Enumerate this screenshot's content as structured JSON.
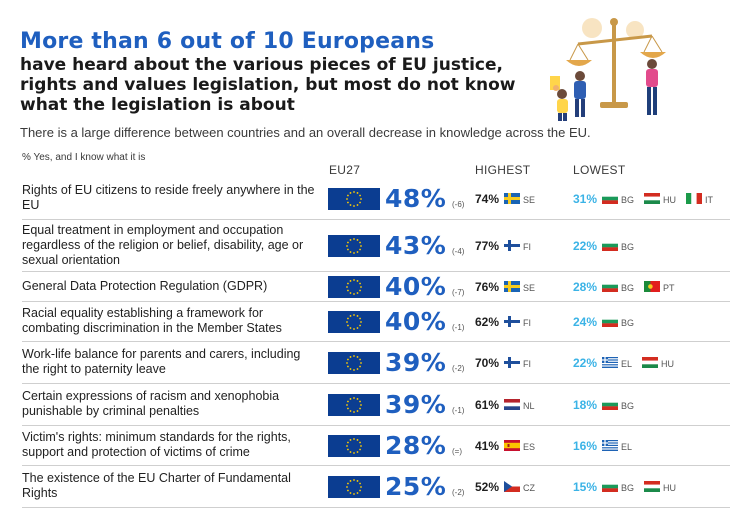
{
  "header": {
    "title": "More than 6 out of 10 Europeans",
    "subtitle": "have heard about the various pieces of EU justice, rights and values legislation, but most do not know what the legislation is about",
    "intro": "There is a large difference between countries and an overall decrease in knowledge across the EU.",
    "unit": "% Yes, and I know what it is"
  },
  "columns": {
    "eu": "EU27",
    "highest": "HIGHEST",
    "lowest": "LOWEST"
  },
  "rows": [
    {
      "label": "Rights of EU citizens to reside freely anywhere in the EU",
      "eu": "48%",
      "change": "(-6)",
      "highest": {
        "value": "74%",
        "countries": [
          {
            "code": "SE",
            "flag": "se"
          }
        ]
      },
      "lowest": {
        "value": "31%",
        "countries": [
          {
            "code": "BG",
            "flag": "bg"
          },
          {
            "code": "HU",
            "flag": "hu"
          },
          {
            "code": "IT",
            "flag": "it"
          }
        ]
      }
    },
    {
      "label": "Equal treatment in employment and occupation regardless of the religion or belief, disability, age or sexual orientation",
      "eu": "43%",
      "change": "(-4)",
      "highest": {
        "value": "77%",
        "countries": [
          {
            "code": "FI",
            "flag": "fi"
          }
        ]
      },
      "lowest": {
        "value": "22%",
        "countries": [
          {
            "code": "BG",
            "flag": "bg"
          }
        ]
      }
    },
    {
      "label": "General Data Protection Regulation (GDPR)",
      "eu": "40%",
      "change": "(-7)",
      "highest": {
        "value": "76%",
        "countries": [
          {
            "code": "SE",
            "flag": "se"
          }
        ]
      },
      "lowest": {
        "value": "28%",
        "countries": [
          {
            "code": "BG",
            "flag": "bg"
          },
          {
            "code": "PT",
            "flag": "pt"
          }
        ]
      }
    },
    {
      "label": "Racial equality establishing a framework for combating discrimination in the Member States",
      "eu": "40%",
      "change": "(-1)",
      "highest": {
        "value": "62%",
        "countries": [
          {
            "code": "FI",
            "flag": "fi"
          }
        ]
      },
      "lowest": {
        "value": "24%",
        "countries": [
          {
            "code": "BG",
            "flag": "bg"
          }
        ]
      }
    },
    {
      "label": "Work-life balance for parents and carers, including the right to paternity leave",
      "eu": "39%",
      "change": "(-2)",
      "highest": {
        "value": "70%",
        "countries": [
          {
            "code": "FI",
            "flag": "fi"
          }
        ]
      },
      "lowest": {
        "value": "22%",
        "countries": [
          {
            "code": "EL",
            "flag": "el"
          },
          {
            "code": "HU",
            "flag": "hu"
          }
        ]
      }
    },
    {
      "label": "Certain expressions of racism and xenophobia punishable by criminal penalties",
      "eu": "39%",
      "change": "(-1)",
      "highest": {
        "value": "61%",
        "countries": [
          {
            "code": "NL",
            "flag": "nl"
          }
        ]
      },
      "lowest": {
        "value": "18%",
        "countries": [
          {
            "code": "BG",
            "flag": "bg"
          }
        ]
      }
    },
    {
      "label": "Victim's rights: minimum standards for the rights, support and protection of victims of crime",
      "eu": "28%",
      "change": "(=)",
      "highest": {
        "value": "41%",
        "countries": [
          {
            "code": "ES",
            "flag": "es"
          }
        ]
      },
      "lowest": {
        "value": "16%",
        "countries": [
          {
            "code": "EL",
            "flag": "el"
          }
        ]
      }
    },
    {
      "label": "The existence of the EU Charter of Fundamental Rights",
      "eu": "25%",
      "change": "(-2)",
      "highest": {
        "value": "52%",
        "countries": [
          {
            "code": "CZ",
            "flag": "cz"
          }
        ]
      },
      "lowest": {
        "value": "15%",
        "countries": [
          {
            "code": "BG",
            "flag": "bg"
          },
          {
            "code": "HU",
            "flag": "hu"
          }
        ]
      }
    }
  ],
  "colors": {
    "title_blue": "#1f5fbf",
    "lowest_blue": "#3bb3e6",
    "eu_flag": "#0b3d91",
    "star": "#ffcc00"
  }
}
